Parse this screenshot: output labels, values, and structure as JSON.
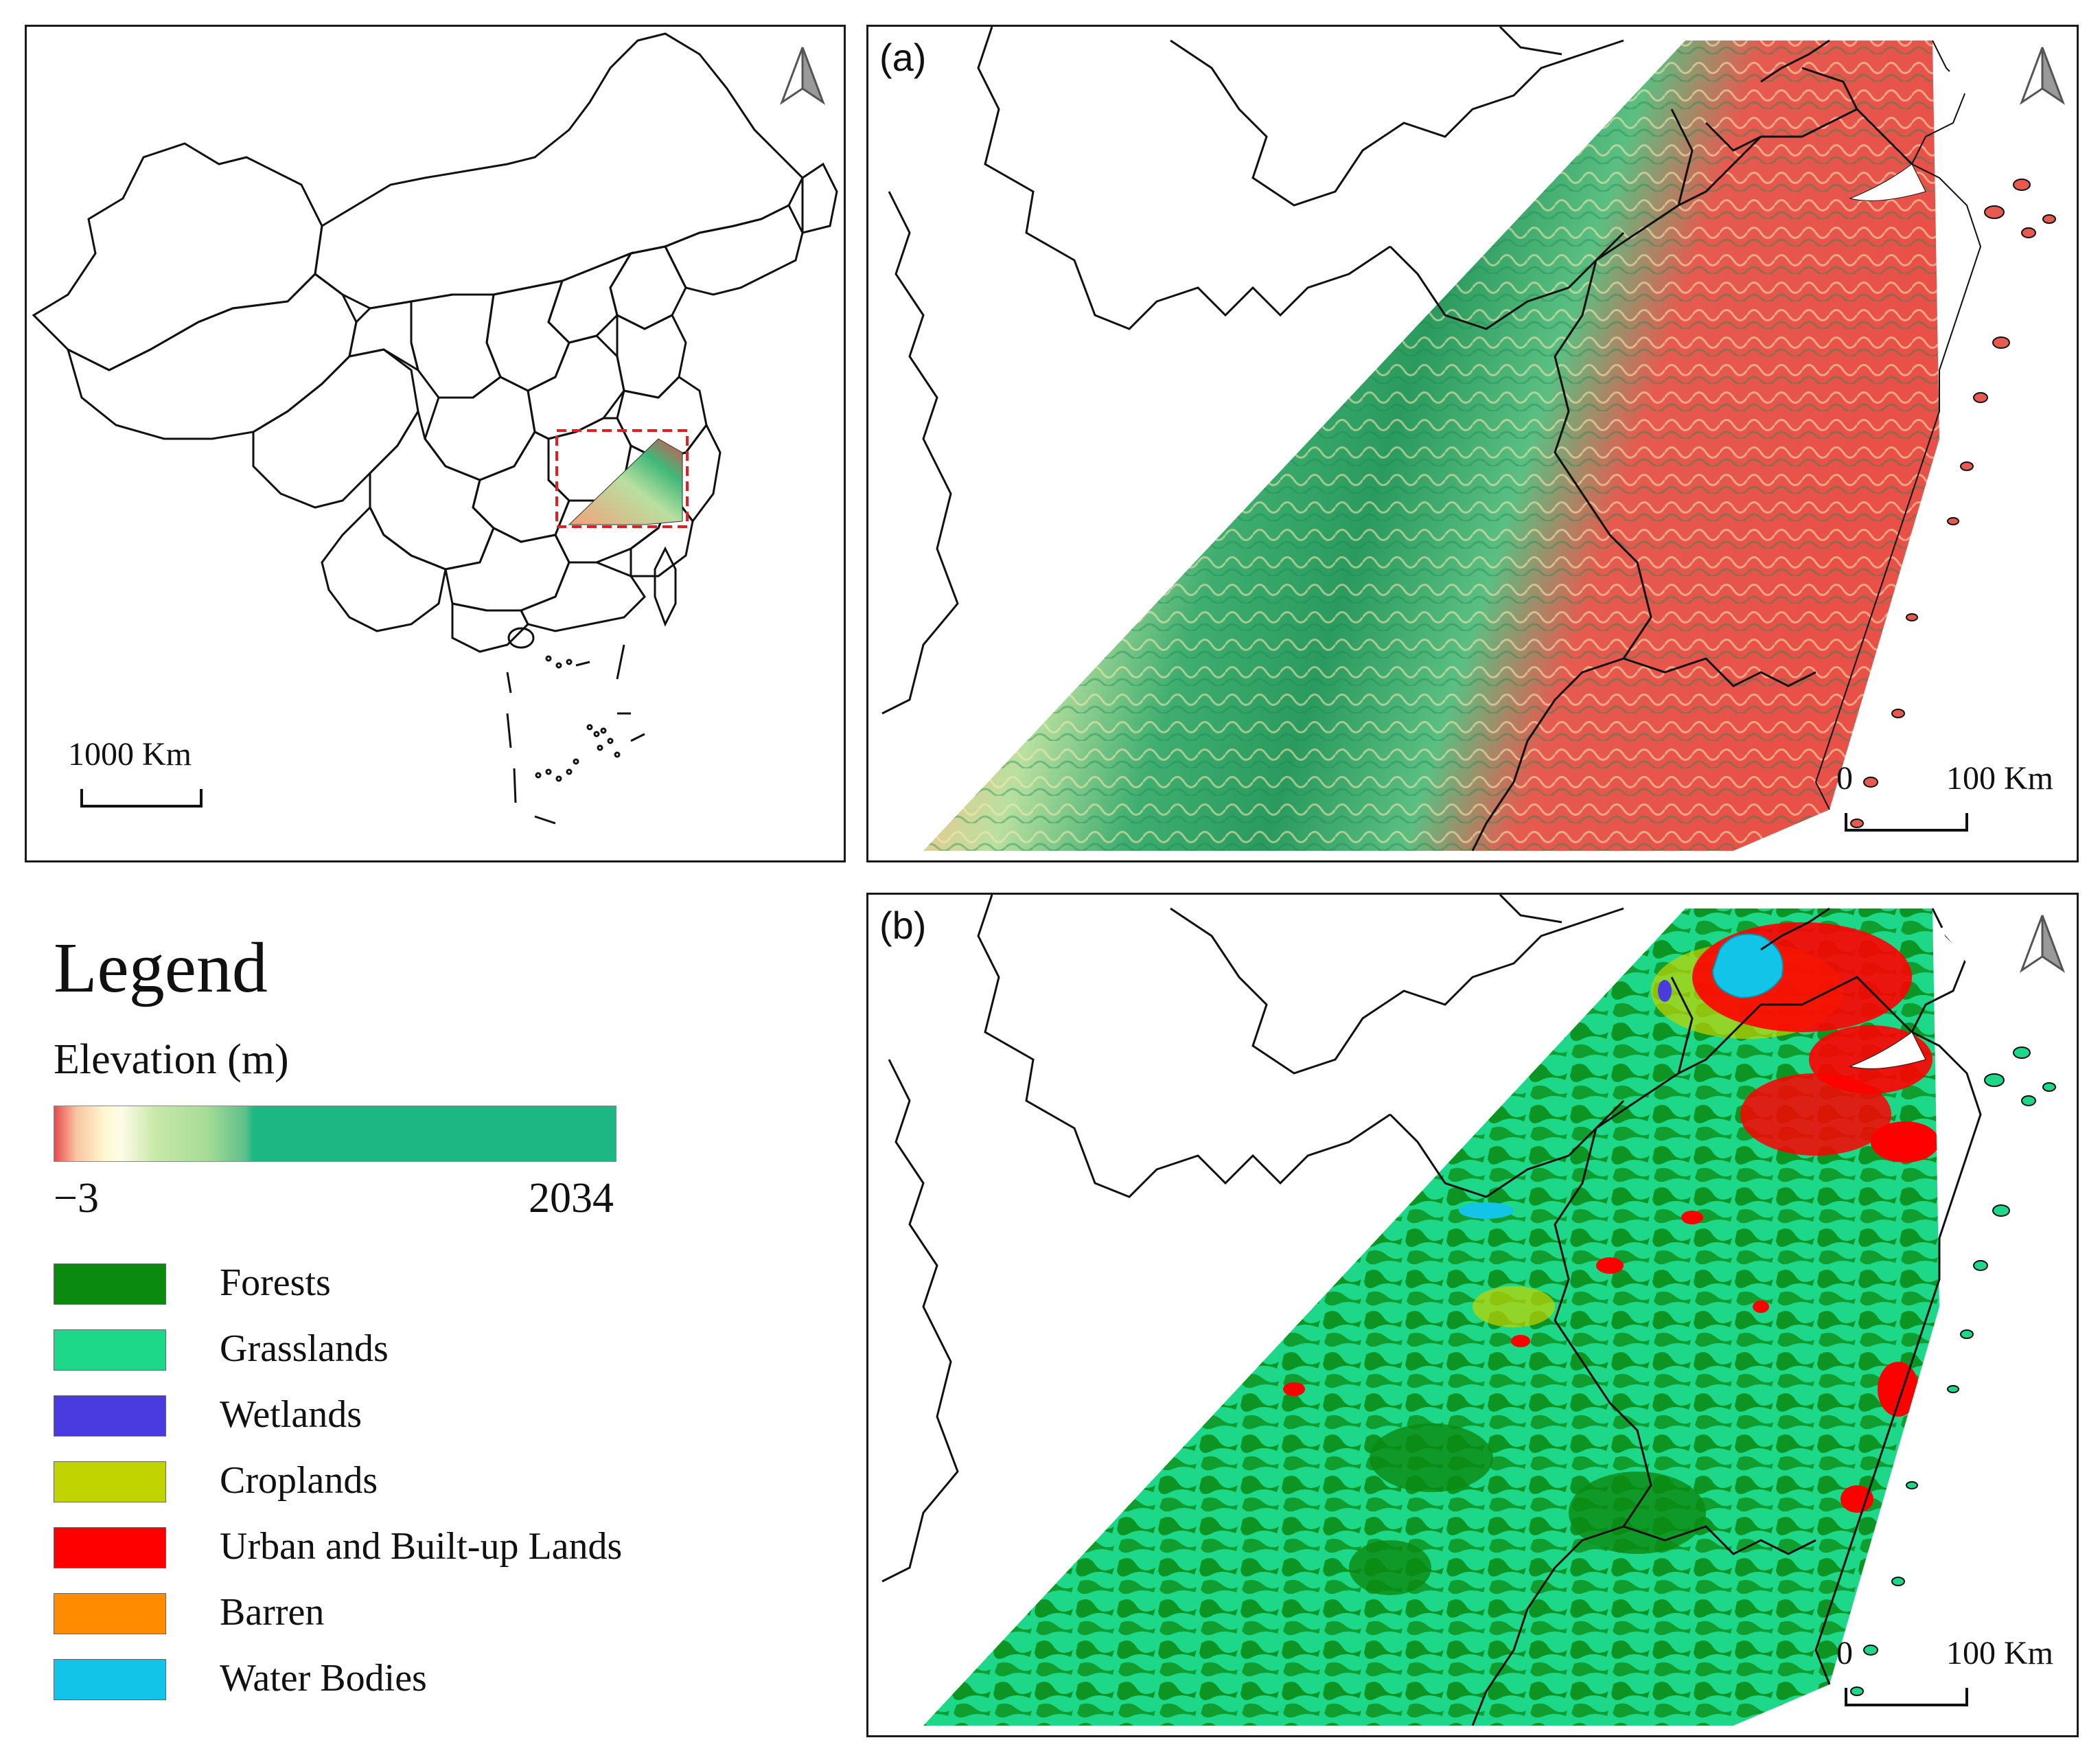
{
  "overview_map": {
    "scale_label": "1000 Km",
    "north_arrow": "north-arrow-icon",
    "inset_box_color": "#e02020"
  },
  "map_a": {
    "label": "(a)",
    "scale_zero": "0",
    "scale_label": "100 Km",
    "north_arrow": "north-arrow-icon"
  },
  "map_b": {
    "label": "(b)",
    "scale_zero": "0",
    "scale_label": "100 Km",
    "north_arrow": "north-arrow-icon"
  },
  "legend": {
    "title": "Legend",
    "elevation": {
      "title": "Elevation (m)",
      "min": "−3",
      "max": "2034",
      "colors": [
        "#e84a4e",
        "#f9c6a2",
        "#fdf8d0",
        "#a8dc98",
        "#1cb782"
      ]
    },
    "land_cover": [
      {
        "label": "Forests",
        "color": "#0b8a10"
      },
      {
        "label": "Grasslands",
        "color": "#1ed88a"
      },
      {
        "label": "Wetlands",
        "color": "#4a3be0"
      },
      {
        "label": "Croplands",
        "color": "#c2d400"
      },
      {
        "label": "Urban and Built-up Lands",
        "color": "#ff0000"
      },
      {
        "label": "Barren",
        "color": "#ff8c00"
      },
      {
        "label": "Water Bodies",
        "color": "#12c4e8"
      }
    ]
  }
}
